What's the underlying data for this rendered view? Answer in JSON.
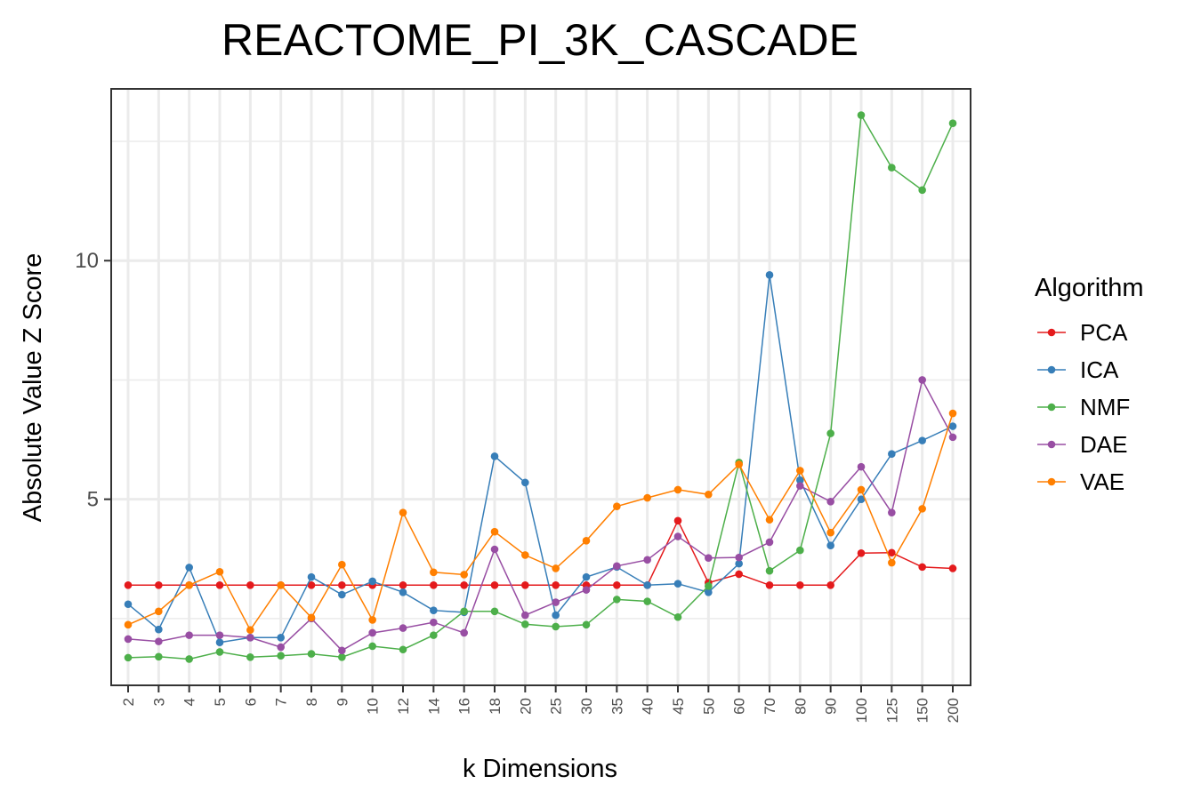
{
  "chart_data": {
    "type": "line",
    "title": "REACTOME_PI_3K_CASCADE",
    "xlabel": "k Dimensions",
    "ylabel": "Absolute Value Z Score",
    "categories": [
      "2",
      "3",
      "4",
      "5",
      "6",
      "7",
      "8",
      "9",
      "10",
      "12",
      "14",
      "16",
      "18",
      "20",
      "25",
      "30",
      "35",
      "40",
      "45",
      "50",
      "60",
      "70",
      "80",
      "90",
      "100",
      "125",
      "150",
      "200"
    ],
    "ylim": [
      1.1,
      13.6
    ],
    "yticks": [
      5,
      10
    ],
    "ytick_labels": [
      "5",
      "10"
    ],
    "grid": true,
    "legend": {
      "title": "Algorithm",
      "position": "right"
    },
    "series": [
      {
        "name": "PCA",
        "color": "#e41a1c",
        "values": [
          3.2,
          3.2,
          3.2,
          3.2,
          3.2,
          3.2,
          3.2,
          3.2,
          3.2,
          3.2,
          3.2,
          3.2,
          3.2,
          3.2,
          3.2,
          3.2,
          3.2,
          3.2,
          4.55,
          3.25,
          3.43,
          3.2,
          3.2,
          3.2,
          3.87,
          3.88,
          3.58,
          3.55
        ]
      },
      {
        "name": "ICA",
        "color": "#377eb8",
        "values": [
          2.8,
          2.27,
          3.57,
          2.0,
          2.1,
          2.1,
          3.37,
          3.0,
          3.28,
          3.05,
          2.67,
          2.63,
          5.9,
          5.35,
          2.57,
          3.37,
          3.58,
          3.2,
          3.23,
          3.05,
          3.65,
          9.7,
          5.4,
          4.03,
          5.0,
          5.95,
          6.23,
          6.53
        ]
      },
      {
        "name": "NMF",
        "color": "#4daf4a",
        "values": [
          1.68,
          1.7,
          1.65,
          1.8,
          1.69,
          1.72,
          1.76,
          1.69,
          1.92,
          1.85,
          2.15,
          2.65,
          2.65,
          2.38,
          2.33,
          2.37,
          2.9,
          2.86,
          2.53,
          3.18,
          5.77,
          3.5,
          3.93,
          6.38,
          13.05,
          11.95,
          11.48,
          12.88
        ]
      },
      {
        "name": "DAE",
        "color": "#984ea3",
        "values": [
          2.07,
          2.02,
          2.15,
          2.15,
          2.1,
          1.9,
          2.5,
          1.83,
          2.2,
          2.3,
          2.42,
          2.2,
          3.95,
          2.57,
          2.84,
          3.1,
          3.6,
          3.73,
          4.22,
          3.77,
          3.78,
          4.1,
          5.28,
          4.95,
          5.68,
          4.72,
          7.5,
          6.3
        ]
      },
      {
        "name": "VAE",
        "color": "#ff7f00",
        "values": [
          2.37,
          2.65,
          3.2,
          3.48,
          2.26,
          3.2,
          2.52,
          3.63,
          2.47,
          4.72,
          3.47,
          3.42,
          4.32,
          3.83,
          3.55,
          4.13,
          4.85,
          5.03,
          5.2,
          5.1,
          5.73,
          4.57,
          5.6,
          4.3,
          5.2,
          3.67,
          4.8,
          6.8
        ]
      }
    ]
  }
}
